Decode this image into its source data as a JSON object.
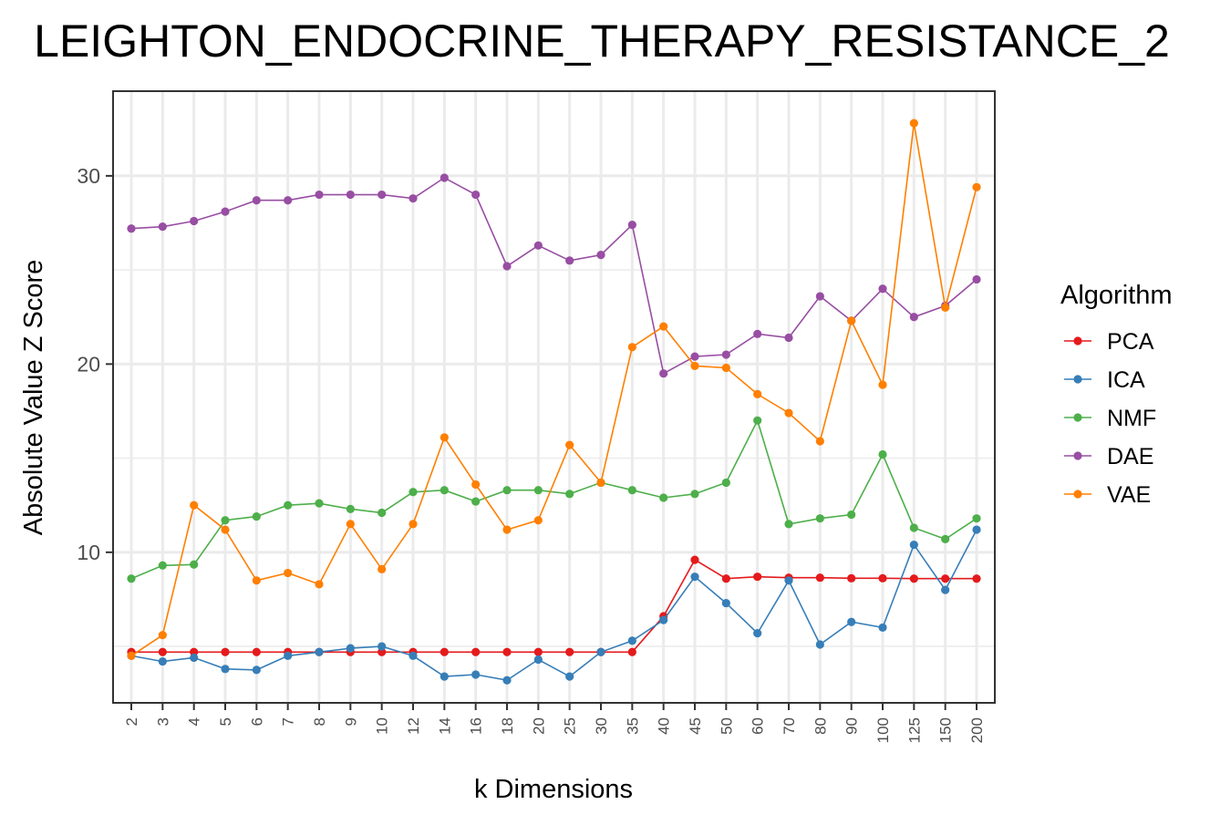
{
  "chart_data": {
    "type": "line",
    "title": "LEIGHTON_ENDOCRINE_THERAPY_RESISTANCE_2",
    "xlabel": "k Dimensions",
    "ylabel": "Absolute Value Z Score",
    "categories": [
      "2",
      "3",
      "4",
      "5",
      "6",
      "7",
      "8",
      "9",
      "10",
      "12",
      "14",
      "16",
      "18",
      "20",
      "25",
      "30",
      "35",
      "40",
      "45",
      "50",
      "60",
      "70",
      "80",
      "90",
      "100",
      "125",
      "150",
      "200"
    ],
    "yticks": [
      10,
      20,
      30
    ],
    "ylim": [
      2.0,
      34.5
    ],
    "grid": true,
    "legend": {
      "title": "Algorithm",
      "position": "right"
    },
    "series": [
      {
        "name": "PCA",
        "color": "#e41a1c",
        "values": [
          4.7,
          4.7,
          4.7,
          4.7,
          4.7,
          4.7,
          4.7,
          4.7,
          4.7,
          4.7,
          4.7,
          4.7,
          4.7,
          4.7,
          4.7,
          4.7,
          4.7,
          6.6,
          9.6,
          8.6,
          8.7,
          8.65,
          8.65,
          8.62,
          8.62,
          8.6,
          8.6,
          8.6
        ]
      },
      {
        "name": "ICA",
        "color": "#377eb8",
        "values": [
          4.5,
          4.2,
          4.4,
          3.8,
          3.75,
          4.5,
          4.7,
          4.9,
          5.0,
          4.5,
          3.4,
          3.5,
          3.2,
          4.3,
          3.4,
          4.7,
          5.3,
          6.4,
          8.7,
          7.3,
          5.7,
          8.5,
          5.1,
          6.3,
          6.0,
          10.4,
          8.0,
          11.2
        ]
      },
      {
        "name": "NMF",
        "color": "#4daf4a",
        "values": [
          8.6,
          9.3,
          9.35,
          11.7,
          11.9,
          12.5,
          12.6,
          12.3,
          12.1,
          13.2,
          13.3,
          12.7,
          13.3,
          13.3,
          13.1,
          13.7,
          13.3,
          12.9,
          13.1,
          13.7,
          17.0,
          11.5,
          11.8,
          12.0,
          15.2,
          11.3,
          10.7,
          11.8
        ]
      },
      {
        "name": "DAE",
        "color": "#984ea3",
        "values": [
          27.2,
          27.3,
          27.6,
          28.1,
          28.7,
          28.7,
          29.0,
          29.0,
          29.0,
          28.8,
          29.9,
          29.0,
          25.2,
          26.3,
          25.5,
          25.8,
          27.4,
          19.5,
          20.4,
          20.5,
          21.6,
          21.4,
          23.6,
          22.3,
          24.0,
          22.5,
          23.1,
          24.5
        ]
      },
      {
        "name": "VAE",
        "color": "#ff7f00",
        "values": [
          4.5,
          5.6,
          12.5,
          11.2,
          8.5,
          8.9,
          8.3,
          11.5,
          9.1,
          11.5,
          16.1,
          13.6,
          11.2,
          11.7,
          15.7,
          13.7,
          20.9,
          22.0,
          19.9,
          19.8,
          18.4,
          17.4,
          15.9,
          22.3,
          18.9,
          32.8,
          23.0,
          29.4
        ]
      }
    ]
  }
}
